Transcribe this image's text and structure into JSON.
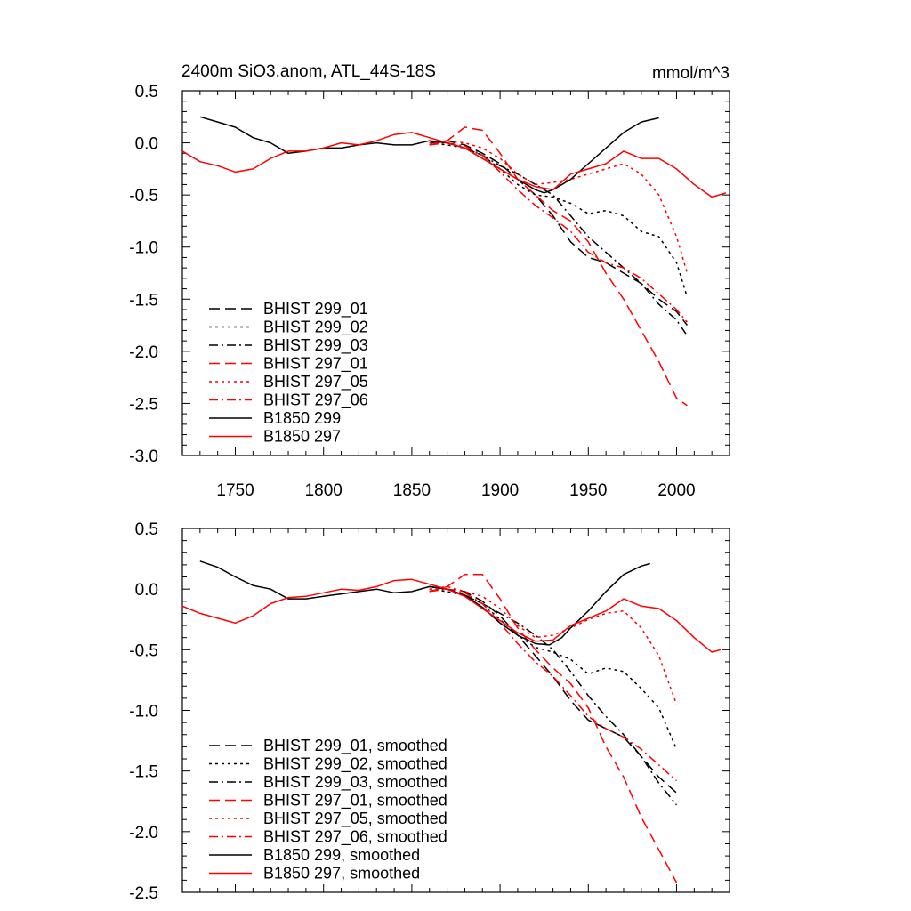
{
  "chart_data": [
    {
      "type": "line",
      "title": "2400m SiO3.anom, ATL_44S-18S",
      "units": "mmol/m^3",
      "xlim": [
        1720,
        2030
      ],
      "ylim": [
        -3.0,
        0.5
      ],
      "x_ticks": [
        1750,
        1800,
        1850,
        1900,
        1950,
        2000
      ],
      "y_ticks": [
        0.5,
        0.0,
        -0.5,
        -1.0,
        -1.5,
        -2.0,
        -2.5,
        -3.0
      ],
      "y_tick_labels": [
        "0.5",
        "0.0",
        "-0.5",
        "-1.0",
        "-1.5",
        "-2.0",
        "-2.5",
        "-3.0"
      ],
      "legend_position": "bottom-left",
      "grid": false,
      "series": [
        {
          "name": "BHIST 299_01",
          "color": "#000000",
          "dash": "dash",
          "x": [
            1860,
            1870,
            1880,
            1890,
            1900,
            1910,
            1920,
            1930,
            1940,
            1950,
            1960,
            1970,
            1980,
            1990,
            2000,
            2006
          ],
          "y": [
            0.0,
            0.02,
            -0.02,
            -0.1,
            -0.2,
            -0.35,
            -0.5,
            -0.7,
            -0.95,
            -1.1,
            -1.15,
            -1.25,
            -1.35,
            -1.5,
            -1.62,
            -1.75
          ]
        },
        {
          "name": "BHIST 299_02",
          "color": "#000000",
          "dash": "dot",
          "x": [
            1860,
            1870,
            1880,
            1890,
            1900,
            1910,
            1920,
            1930,
            1940,
            1950,
            1960,
            1970,
            1980,
            1990,
            2000,
            2006
          ],
          "y": [
            0.0,
            -0.02,
            -0.05,
            -0.12,
            -0.25,
            -0.4,
            -0.5,
            -0.52,
            -0.58,
            -0.68,
            -0.65,
            -0.7,
            -0.85,
            -0.9,
            -1.15,
            -1.48
          ]
        },
        {
          "name": "BHIST 299_03",
          "color": "#000000",
          "dash": "dashdot",
          "x": [
            1860,
            1870,
            1880,
            1890,
            1900,
            1910,
            1920,
            1930,
            1940,
            1950,
            1960,
            1970,
            1980,
            1990,
            2000,
            2006
          ],
          "y": [
            0.02,
            0.0,
            -0.05,
            -0.12,
            -0.22,
            -0.3,
            -0.4,
            -0.5,
            -0.7,
            -0.9,
            -1.05,
            -1.2,
            -1.35,
            -1.55,
            -1.7,
            -1.85
          ]
        },
        {
          "name": "BHIST 297_01",
          "color": "#ff0000",
          "dash": "dash",
          "x": [
            1860,
            1870,
            1880,
            1890,
            1900,
            1910,
            1920,
            1930,
            1940,
            1950,
            1960,
            1970,
            1980,
            1990,
            2000,
            2006
          ],
          "y": [
            -0.02,
            0.02,
            0.15,
            0.12,
            -0.1,
            -0.35,
            -0.5,
            -0.65,
            -0.75,
            -0.95,
            -1.25,
            -1.5,
            -1.8,
            -2.1,
            -2.45,
            -2.52
          ]
        },
        {
          "name": "BHIST 297_05",
          "color": "#ff0000",
          "dash": "dot",
          "x": [
            1860,
            1870,
            1880,
            1890,
            1900,
            1910,
            1920,
            1930,
            1940,
            1950,
            1960,
            1970,
            1980,
            1990,
            2000,
            2006
          ],
          "y": [
            0.0,
            0.02,
            0.0,
            -0.05,
            -0.15,
            -0.3,
            -0.4,
            -0.38,
            -0.35,
            -0.3,
            -0.25,
            -0.2,
            -0.3,
            -0.5,
            -0.9,
            -1.25
          ]
        },
        {
          "name": "BHIST 297_06",
          "color": "#ff0000",
          "dash": "dashdot",
          "x": [
            1860,
            1870,
            1880,
            1890,
            1900,
            1910,
            1920,
            1930,
            1940,
            1950,
            1960,
            1970,
            1980,
            1990,
            2000,
            2006
          ],
          "y": [
            -0.02,
            0.0,
            -0.03,
            -0.12,
            -0.28,
            -0.45,
            -0.6,
            -0.72,
            -0.85,
            -1.05,
            -1.15,
            -1.2,
            -1.3,
            -1.45,
            -1.6,
            -1.72
          ]
        },
        {
          "name": "B1850 299",
          "color": "#000000",
          "dash": "solid",
          "x": [
            1730,
            1740,
            1750,
            1760,
            1770,
            1780,
            1790,
            1800,
            1810,
            1820,
            1830,
            1840,
            1850,
            1860,
            1870,
            1880,
            1890,
            1900,
            1910,
            1920,
            1925,
            1930,
            1940,
            1950,
            1960,
            1970,
            1980,
            1990
          ],
          "y": [
            0.25,
            0.2,
            0.15,
            0.05,
            0.0,
            -0.1,
            -0.08,
            -0.05,
            -0.05,
            -0.02,
            0.0,
            -0.02,
            -0.02,
            0.02,
            0.0,
            -0.05,
            -0.15,
            -0.25,
            -0.35,
            -0.45,
            -0.48,
            -0.45,
            -0.35,
            -0.2,
            -0.05,
            0.1,
            0.2,
            0.24
          ]
        },
        {
          "name": "B1850 297",
          "color": "#ff0000",
          "dash": "solid",
          "x": [
            1720,
            1730,
            1740,
            1750,
            1760,
            1770,
            1780,
            1790,
            1800,
            1810,
            1820,
            1830,
            1840,
            1850,
            1860,
            1870,
            1880,
            1890,
            1900,
            1910,
            1920,
            1930,
            1940,
            1950,
            1960,
            1970,
            1980,
            1990,
            2000,
            2010,
            2020,
            2028
          ],
          "y": [
            -0.08,
            -0.18,
            -0.22,
            -0.28,
            -0.25,
            -0.15,
            -0.08,
            -0.08,
            -0.05,
            0.0,
            -0.02,
            0.02,
            0.08,
            0.1,
            0.05,
            0.0,
            -0.05,
            -0.15,
            -0.25,
            -0.35,
            -0.42,
            -0.45,
            -0.3,
            -0.25,
            -0.2,
            -0.08,
            -0.15,
            -0.15,
            -0.25,
            -0.4,
            -0.52,
            -0.48
          ]
        }
      ]
    },
    {
      "type": "line",
      "xlim": [
        1720,
        2030
      ],
      "ylim": [
        -2.5,
        0.5
      ],
      "x_ticks": [
        1750,
        1800,
        1850,
        1900,
        1950,
        2000
      ],
      "y_ticks": [
        0.5,
        0.0,
        -0.5,
        -1.0,
        -1.5,
        -2.0,
        -2.5
      ],
      "y_tick_labels": [
        "0.5",
        "0.0",
        "-0.5",
        "-1.0",
        "-1.5",
        "-2.0",
        "-2.5"
      ],
      "legend_position": "bottom-left",
      "grid": false,
      "series": [
        {
          "name": "BHIST 299_01, smoothed",
          "color": "#000000",
          "dash": "dash",
          "x": [
            1860,
            1870,
            1880,
            1890,
            1900,
            1910,
            1920,
            1930,
            1940,
            1950,
            1960,
            1970,
            1980,
            1990,
            2000
          ],
          "y": [
            0.02,
            0.0,
            -0.02,
            -0.1,
            -0.22,
            -0.38,
            -0.55,
            -0.72,
            -0.92,
            -1.08,
            -1.15,
            -1.22,
            -1.38,
            -1.55,
            -1.68
          ]
        },
        {
          "name": "BHIST 299_02, smoothed",
          "color": "#000000",
          "dash": "dot",
          "x": [
            1860,
            1870,
            1880,
            1890,
            1900,
            1910,
            1920,
            1930,
            1940,
            1950,
            1960,
            1970,
            1980,
            1990,
            2000
          ],
          "y": [
            0.0,
            -0.02,
            -0.05,
            -0.12,
            -0.25,
            -0.38,
            -0.48,
            -0.52,
            -0.58,
            -0.7,
            -0.65,
            -0.68,
            -0.82,
            -0.98,
            -1.32
          ]
        },
        {
          "name": "BHIST 299_03, smoothed",
          "color": "#000000",
          "dash": "dashdot",
          "x": [
            1860,
            1870,
            1880,
            1890,
            1900,
            1910,
            1920,
            1930,
            1940,
            1950,
            1960,
            1970,
            1980,
            1990,
            2000
          ],
          "y": [
            0.02,
            0.0,
            -0.05,
            -0.12,
            -0.2,
            -0.28,
            -0.38,
            -0.5,
            -0.68,
            -0.88,
            -1.05,
            -1.2,
            -1.38,
            -1.6,
            -1.78
          ]
        },
        {
          "name": "BHIST 297_01, smoothed",
          "color": "#ff0000",
          "dash": "dash",
          "x": [
            1860,
            1870,
            1880,
            1890,
            1900,
            1910,
            1920,
            1930,
            1940,
            1950,
            1960,
            1970,
            1980,
            1990,
            2000
          ],
          "y": [
            -0.02,
            0.02,
            0.12,
            0.12,
            -0.08,
            -0.32,
            -0.5,
            -0.65,
            -0.78,
            -0.98,
            -1.3,
            -1.55,
            -1.88,
            -2.15,
            -2.42
          ]
        },
        {
          "name": "BHIST 297_05, smoothed",
          "color": "#ff0000",
          "dash": "dot",
          "x": [
            1860,
            1870,
            1880,
            1890,
            1900,
            1910,
            1920,
            1930,
            1940,
            1950,
            1960,
            1970,
            1980,
            1990,
            2000
          ],
          "y": [
            0.0,
            0.02,
            -0.02,
            -0.06,
            -0.16,
            -0.3,
            -0.4,
            -0.38,
            -0.32,
            -0.25,
            -0.2,
            -0.18,
            -0.32,
            -0.55,
            -0.95
          ]
        },
        {
          "name": "BHIST 297_06, smoothed",
          "color": "#ff0000",
          "dash": "dashdot",
          "x": [
            1860,
            1870,
            1880,
            1890,
            1900,
            1910,
            1920,
            1930,
            1940,
            1950,
            1960,
            1970,
            1980,
            1990,
            2000
          ],
          "y": [
            -0.02,
            0.0,
            -0.03,
            -0.12,
            -0.28,
            -0.45,
            -0.6,
            -0.72,
            -0.88,
            -1.05,
            -1.15,
            -1.22,
            -1.32,
            -1.45,
            -1.58
          ]
        },
        {
          "name": "B1850 299, smoothed",
          "color": "#000000",
          "dash": "solid",
          "x": [
            1730,
            1740,
            1750,
            1760,
            1770,
            1780,
            1790,
            1800,
            1810,
            1820,
            1830,
            1840,
            1850,
            1860,
            1870,
            1880,
            1890,
            1900,
            1910,
            1920,
            1928,
            1935,
            1940,
            1950,
            1960,
            1970,
            1980,
            1985
          ],
          "y": [
            0.23,
            0.18,
            0.1,
            0.03,
            0.0,
            -0.08,
            -0.08,
            -0.06,
            -0.04,
            -0.02,
            0.0,
            -0.03,
            -0.02,
            0.02,
            0.0,
            -0.05,
            -0.15,
            -0.28,
            -0.38,
            -0.45,
            -0.46,
            -0.4,
            -0.32,
            -0.18,
            -0.02,
            0.12,
            0.19,
            0.21
          ]
        },
        {
          "name": "B1850 297, smoothed",
          "color": "#ff0000",
          "dash": "solid",
          "x": [
            1720,
            1730,
            1740,
            1750,
            1760,
            1770,
            1780,
            1790,
            1800,
            1810,
            1820,
            1830,
            1840,
            1850,
            1860,
            1870,
            1880,
            1890,
            1900,
            1910,
            1920,
            1930,
            1940,
            1950,
            1960,
            1970,
            1980,
            1990,
            2000,
            2010,
            2020,
            2025
          ],
          "y": [
            -0.14,
            -0.2,
            -0.24,
            -0.28,
            -0.22,
            -0.12,
            -0.07,
            -0.06,
            -0.03,
            0.0,
            -0.01,
            0.02,
            0.07,
            0.08,
            0.04,
            0.0,
            -0.06,
            -0.16,
            -0.26,
            -0.36,
            -0.43,
            -0.42,
            -0.3,
            -0.24,
            -0.18,
            -0.08,
            -0.14,
            -0.16,
            -0.26,
            -0.4,
            -0.52,
            -0.5
          ]
        }
      ]
    }
  ]
}
